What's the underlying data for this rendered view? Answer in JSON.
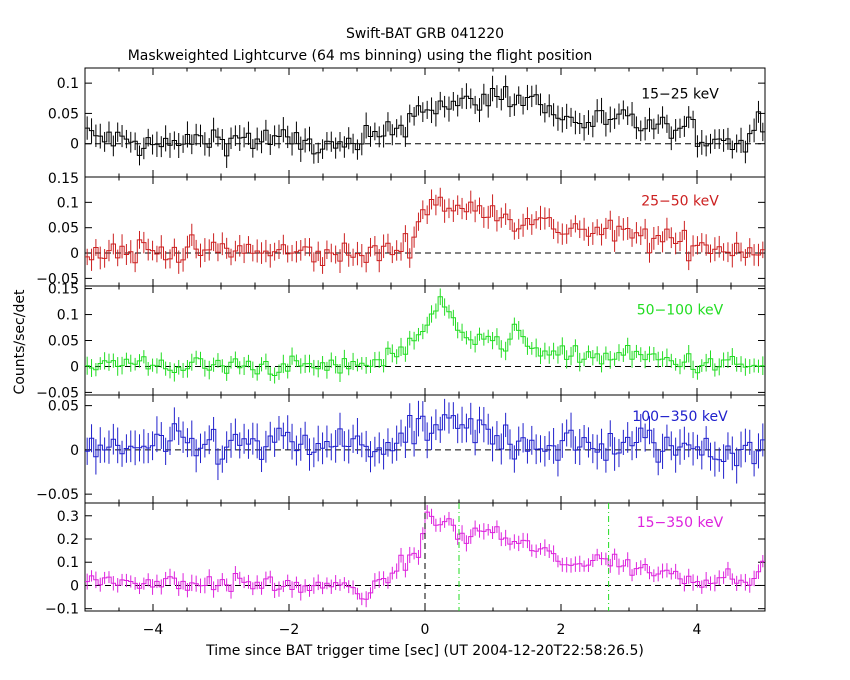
{
  "figure": {
    "title_line1": "Swift-BAT GRB 041220",
    "title_line2": "Maskweighted Lightcurve (64 ms binning) using the flight position",
    "xlabel": "Time since BAT trigger time [sec] (UT 2004-12-20T22:58:26.5)",
    "ylabel": "Counts/sec/det"
  },
  "chart_data": [
    {
      "type": "line",
      "name": "15-25 keV",
      "label": "15−25 keV",
      "color": "#000000",
      "xlim": [
        -5,
        5
      ],
      "ylim": [
        -0.055,
        0.125
      ],
      "yticks": [
        0,
        0.05,
        0.1
      ],
      "ytick_labels": [
        "0",
        "0.05",
        "0.1"
      ],
      "baseline": 0,
      "segments": [
        {
          "x": -5.0,
          "y": 0.015
        },
        {
          "x": -4.0,
          "y": -0.005
        },
        {
          "x": -3.0,
          "y": 0.01
        },
        {
          "x": -2.0,
          "y": 0.005
        },
        {
          "x": -1.2,
          "y": -0.01
        },
        {
          "x": -0.5,
          "y": 0.02
        },
        {
          "x": -0.2,
          "y": 0.045
        },
        {
          "x": 0.0,
          "y": 0.065
        },
        {
          "x": 0.5,
          "y": 0.06
        },
        {
          "x": 1.0,
          "y": 0.08
        },
        {
          "x": 1.6,
          "y": 0.075
        },
        {
          "x": 2.0,
          "y": 0.04
        },
        {
          "x": 3.0,
          "y": 0.035
        },
        {
          "x": 4.0,
          "y": 0.015
        },
        {
          "x": 4.7,
          "y": 0.0
        },
        {
          "x": 5.0,
          "y": 0.05
        }
      ],
      "amp": 0.018
    },
    {
      "type": "line",
      "name": "25-50 keV",
      "label": "25−50 keV",
      "color": "#cc2020",
      "xlim": [
        -5,
        5
      ],
      "ylim": [
        -0.065,
        0.15
      ],
      "yticks": [
        -0.05,
        0,
        0.05,
        0.1
      ],
      "ytick_labels": [
        "−0.05",
        "0",
        "0.05",
        "0.1"
      ],
      "top_label": "0.15",
      "baseline": 0,
      "segments": [
        {
          "x": -5.0,
          "y": 0.005
        },
        {
          "x": -3.0,
          "y": 0.005
        },
        {
          "x": -1.0,
          "y": -0.005
        },
        {
          "x": -0.3,
          "y": 0.01
        },
        {
          "x": 0.0,
          "y": 0.075
        },
        {
          "x": 0.1,
          "y": 0.11
        },
        {
          "x": 0.5,
          "y": 0.08
        },
        {
          "x": 1.0,
          "y": 0.095
        },
        {
          "x": 1.3,
          "y": 0.065
        },
        {
          "x": 2.0,
          "y": 0.05
        },
        {
          "x": 3.0,
          "y": 0.035
        },
        {
          "x": 4.0,
          "y": 0.015
        },
        {
          "x": 5.0,
          "y": 0.005
        }
      ],
      "amp": 0.02
    },
    {
      "type": "line",
      "name": "50-100 keV",
      "label": "50−100 keV",
      "color": "#22dd22",
      "xlim": [
        -5,
        5
      ],
      "ylim": [
        -0.055,
        0.155
      ],
      "yticks": [
        -0.05,
        0,
        0.05,
        0.1,
        0.15
      ],
      "ytick_labels": [
        "−0.05",
        "0",
        "0.05",
        "0.1",
        "0.15"
      ],
      "baseline": 0,
      "segments": [
        {
          "x": -5.0,
          "y": 0.005
        },
        {
          "x": -3.0,
          "y": 0.0
        },
        {
          "x": -1.0,
          "y": 0.0
        },
        {
          "x": -0.5,
          "y": 0.02
        },
        {
          "x": -0.1,
          "y": 0.06
        },
        {
          "x": 0.1,
          "y": 0.1
        },
        {
          "x": 0.25,
          "y": 0.12
        },
        {
          "x": 0.5,
          "y": 0.07
        },
        {
          "x": 0.9,
          "y": 0.06
        },
        {
          "x": 1.2,
          "y": 0.035
        },
        {
          "x": 1.3,
          "y": 0.06
        },
        {
          "x": 2.0,
          "y": 0.02
        },
        {
          "x": 3.0,
          "y": 0.02
        },
        {
          "x": 4.0,
          "y": 0.005
        },
        {
          "x": 5.0,
          "y": 0.0
        }
      ],
      "amp": 0.015
    },
    {
      "type": "line",
      "name": "100-350 keV",
      "label": "100−350 keV",
      "color": "#2020cc",
      "xlim": [
        -5,
        5
      ],
      "ylim": [
        -0.06,
        0.062
      ],
      "yticks": [
        -0.05,
        0,
        0.05
      ],
      "ytick_labels": [
        "−0.05",
        "0",
        "0.05"
      ],
      "baseline": 0,
      "segments": [
        {
          "x": -5.0,
          "y": 0.0
        },
        {
          "x": -3.0,
          "y": 0.005
        },
        {
          "x": -1.0,
          "y": 0.005
        },
        {
          "x": -0.3,
          "y": 0.005
        },
        {
          "x": 0.0,
          "y": 0.025
        },
        {
          "x": 0.4,
          "y": 0.025
        },
        {
          "x": 1.0,
          "y": 0.015
        },
        {
          "x": 2.0,
          "y": 0.005
        },
        {
          "x": 3.0,
          "y": 0.005
        },
        {
          "x": 5.0,
          "y": 0.0
        }
      ],
      "amp": 0.017
    },
    {
      "type": "line",
      "name": "15-350 keV",
      "label": "15−350 keV",
      "color": "#dd22dd",
      "xlim": [
        -5,
        5
      ],
      "ylim": [
        -0.11,
        0.355
      ],
      "yticks": [
        -0.1,
        0,
        0.1,
        0.2,
        0.3
      ],
      "ytick_labels": [
        "−0.1",
        "0",
        "0.1",
        "0.2",
        "0.3"
      ],
      "baseline": 0,
      "segments": [
        {
          "x": -5.0,
          "y": 0.02
        },
        {
          "x": -3.0,
          "y": 0.01
        },
        {
          "x": -1.2,
          "y": -0.01
        },
        {
          "x": -0.8,
          "y": -0.04
        },
        {
          "x": -0.5,
          "y": 0.05
        },
        {
          "x": -0.1,
          "y": 0.15
        },
        {
          "x": 0.0,
          "y": 0.28
        },
        {
          "x": 0.3,
          "y": 0.27
        },
        {
          "x": 0.6,
          "y": 0.2
        },
        {
          "x": 0.9,
          "y": 0.25
        },
        {
          "x": 1.3,
          "y": 0.18
        },
        {
          "x": 1.8,
          "y": 0.15
        },
        {
          "x": 2.0,
          "y": 0.08
        },
        {
          "x": 2.5,
          "y": 0.12
        },
        {
          "x": 3.0,
          "y": 0.08
        },
        {
          "x": 4.0,
          "y": 0.03
        },
        {
          "x": 5.0,
          "y": 0.05
        }
      ],
      "amp": 0.03,
      "vlines": [
        {
          "x": 0.0,
          "style": "dashed",
          "color": "#000000"
        },
        {
          "x": 0.5,
          "style": "dashdot",
          "color": "#22dd22"
        },
        {
          "x": 2.7,
          "style": "dashdot",
          "color": "#22dd22"
        }
      ]
    }
  ],
  "x_axis": {
    "ticks": [
      -4,
      -2,
      0,
      2,
      4
    ],
    "tick_labels": [
      "−4",
      "−2",
      "0",
      "2",
      "4"
    ]
  }
}
